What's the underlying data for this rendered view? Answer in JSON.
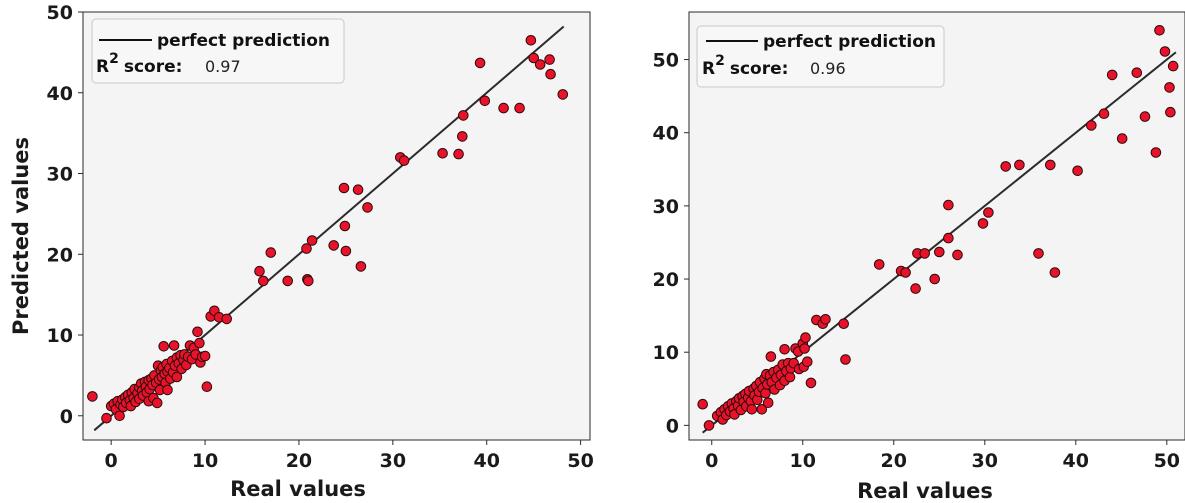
{
  "chart_data": [
    {
      "type": "scatter",
      "xlabel": "Real values",
      "ylabel": "Predicted values",
      "xlim": [
        -3,
        51
      ],
      "ylim": [
        -3,
        50
      ],
      "xticks": [
        0,
        10,
        20,
        30,
        40,
        50
      ],
      "yticks": [
        0,
        10,
        20,
        30,
        40,
        50
      ],
      "grid": false,
      "legend_position": "top-left",
      "legend": {
        "line_label": "perfect prediction",
        "score_label": "score",
        "score_sep": ":",
        "score_value": "0.97"
      },
      "line": {
        "x": [
          -1.8,
          48.2
        ],
        "y": [
          -1.8,
          48.2
        ]
      },
      "colors": {
        "marker": "#e8132b",
        "marker_edge": "#2a0a0a",
        "line": "#2b2b2b",
        "background": "#f4f4f4"
      },
      "points": [
        [
          -2,
          2.4
        ],
        [
          -0.5,
          -0.3
        ],
        [
          0,
          1.2
        ],
        [
          0.3,
          1.5
        ],
        [
          0.5,
          0.8
        ],
        [
          0.7,
          1.8
        ],
        [
          0.9,
          0
        ],
        [
          1,
          1.4
        ],
        [
          1.2,
          2
        ],
        [
          1.3,
          1.1
        ],
        [
          1.5,
          2.3
        ],
        [
          1.6,
          1.6
        ],
        [
          1.8,
          2.6
        ],
        [
          2,
          1.9
        ],
        [
          2.1,
          1.2
        ],
        [
          2.2,
          2.9
        ],
        [
          2.4,
          2.2
        ],
        [
          2.5,
          3.3
        ],
        [
          2.6,
          1.7
        ],
        [
          2.8,
          2.8
        ],
        [
          3,
          3.5
        ],
        [
          3,
          2.1
        ],
        [
          3.2,
          4
        ],
        [
          3.3,
          3.1
        ],
        [
          3.4,
          2.5
        ],
        [
          3.6,
          4.2
        ],
        [
          3.7,
          3.6
        ],
        [
          3.8,
          2.9
        ],
        [
          4,
          4.4
        ],
        [
          4,
          1.8
        ],
        [
          4.1,
          3.3
        ],
        [
          4.3,
          4.6
        ],
        [
          4.4,
          3.8
        ],
        [
          4.5,
          2.2
        ],
        [
          4.6,
          5
        ],
        [
          4.8,
          4.1
        ],
        [
          4.9,
          1.6
        ],
        [
          5,
          6.2
        ],
        [
          5.1,
          4.5
        ],
        [
          5.2,
          3.2
        ],
        [
          5.3,
          5.6
        ],
        [
          5.4,
          4.8
        ],
        [
          5.5,
          6
        ],
        [
          5.6,
          8.6
        ],
        [
          5.7,
          5.2
        ],
        [
          5.8,
          4.1
        ],
        [
          5.9,
          6.4
        ],
        [
          6,
          5.5
        ],
        [
          6,
          3.2
        ],
        [
          6.2,
          5.9
        ],
        [
          6.3,
          4.6
        ],
        [
          6.5,
          6.8
        ],
        [
          6.6,
          5.4
        ],
        [
          6.7,
          8.7
        ],
        [
          6.8,
          6.2
        ],
        [
          7,
          7.2
        ],
        [
          7,
          4.8
        ],
        [
          7.2,
          6.5
        ],
        [
          7.4,
          7.5
        ],
        [
          7.5,
          5.8
        ],
        [
          7.7,
          6.9
        ],
        [
          7.8,
          7.6
        ],
        [
          8,
          6.3
        ],
        [
          8.2,
          7.3
        ],
        [
          8.4,
          8.7
        ],
        [
          8.6,
          7
        ],
        [
          8.8,
          8.4
        ],
        [
          9,
          7.6
        ],
        [
          9.2,
          10.4
        ],
        [
          9.4,
          9
        ],
        [
          9.5,
          6.6
        ],
        [
          9.7,
          7.3
        ],
        [
          10,
          7.4
        ],
        [
          10.2,
          3.6
        ],
        [
          10.6,
          12.3
        ],
        [
          11,
          13
        ],
        [
          11.5,
          12.2
        ],
        [
          12.3,
          12
        ],
        [
          15.8,
          17.9
        ],
        [
          16.2,
          16.7
        ],
        [
          17,
          20.2
        ],
        [
          18.8,
          16.7
        ],
        [
          20.8,
          20.7
        ],
        [
          20.9,
          16.9
        ],
        [
          21,
          16.7
        ],
        [
          21.4,
          21.7
        ],
        [
          23.7,
          21.1
        ],
        [
          24.8,
          28.2
        ],
        [
          24.9,
          23.5
        ],
        [
          25,
          20.4
        ],
        [
          26.3,
          28
        ],
        [
          26.6,
          18.5
        ],
        [
          27.3,
          25.8
        ],
        [
          30.8,
          32
        ],
        [
          31.2,
          31.6
        ],
        [
          35.3,
          32.5
        ],
        [
          37,
          32.4
        ],
        [
          37.4,
          34.6
        ],
        [
          37.5,
          37.2
        ],
        [
          39.3,
          43.7
        ],
        [
          39.8,
          39
        ],
        [
          41.8,
          38.1
        ],
        [
          43.5,
          38.1
        ],
        [
          44.7,
          46.5
        ],
        [
          45,
          44.3
        ],
        [
          45.7,
          43.5
        ],
        [
          46.7,
          44.1
        ],
        [
          46.8,
          42.3
        ],
        [
          48.1,
          39.8
        ]
      ]
    },
    {
      "type": "scatter",
      "xlabel": "Real values",
      "ylabel": "",
      "xlim": [
        -2.5,
        52
      ],
      "ylim": [
        -2,
        56.5
      ],
      "xticks": [
        0,
        10,
        20,
        30,
        40,
        50
      ],
      "yticks": [
        0,
        10,
        20,
        30,
        40,
        50
      ],
      "grid": false,
      "legend_position": "top-left",
      "legend": {
        "line_label": "perfect prediction",
        "score_label": "score",
        "score_sep": ":",
        "score_value": "0.96"
      },
      "line": {
        "x": [
          -1,
          51
        ],
        "y": [
          -1,
          51
        ]
      },
      "colors": {
        "marker": "#e8132b",
        "marker_edge": "#2a0a0a",
        "line": "#2b2b2b",
        "background": "#f4f4f4"
      },
      "points": [
        [
          -1,
          2.9
        ],
        [
          -0.3,
          0
        ],
        [
          0.6,
          1.3
        ],
        [
          1,
          1.8
        ],
        [
          1.2,
          0.8
        ],
        [
          1.4,
          2.2
        ],
        [
          1.6,
          1.4
        ],
        [
          1.8,
          2.6
        ],
        [
          2,
          1.9
        ],
        [
          2.2,
          3
        ],
        [
          2.4,
          2.3
        ],
        [
          2.5,
          1.5
        ],
        [
          2.7,
          3.3
        ],
        [
          2.9,
          2.7
        ],
        [
          3,
          3.7
        ],
        [
          3.2,
          2.1
        ],
        [
          3.4,
          4
        ],
        [
          3.5,
          3.2
        ],
        [
          3.7,
          4.3
        ],
        [
          3.8,
          2.6
        ],
        [
          4,
          3.8
        ],
        [
          4.1,
          4.7
        ],
        [
          4.3,
          3.3
        ],
        [
          4.4,
          2.2
        ],
        [
          4.6,
          5
        ],
        [
          4.7,
          4.1
        ],
        [
          4.9,
          5.4
        ],
        [
          5,
          3.5
        ],
        [
          5.2,
          4.6
        ],
        [
          5.3,
          5.9
        ],
        [
          5.5,
          2.2
        ],
        [
          5.6,
          5.1
        ],
        [
          5.8,
          6.4
        ],
        [
          5.9,
          4.4
        ],
        [
          6,
          7
        ],
        [
          6.1,
          5.6
        ],
        [
          6.2,
          3.1
        ],
        [
          6.4,
          6.8
        ],
        [
          6.5,
          9.4
        ],
        [
          6.6,
          5.9
        ],
        [
          6.8,
          7.3
        ],
        [
          6.9,
          4.9
        ],
        [
          7.1,
          6.5
        ],
        [
          7.3,
          7.6
        ],
        [
          7.5,
          5.5
        ],
        [
          7.6,
          6.9
        ],
        [
          7.8,
          8.3
        ],
        [
          8,
          10.4
        ],
        [
          8,
          6.1
        ],
        [
          8.2,
          7.4
        ],
        [
          8.4,
          8.5
        ],
        [
          8.6,
          6.6
        ],
        [
          8.7,
          7.8
        ],
        [
          9,
          8.5
        ],
        [
          9.2,
          10.5
        ],
        [
          9.5,
          10.1
        ],
        [
          9.6,
          7.7
        ],
        [
          10,
          11.2
        ],
        [
          10.1,
          8
        ],
        [
          10.2,
          10.5
        ],
        [
          10.3,
          12
        ],
        [
          10.5,
          8.7
        ],
        [
          10.9,
          5.8
        ],
        [
          11.5,
          14.4
        ],
        [
          12.2,
          13.9
        ],
        [
          12.5,
          14.5
        ],
        [
          14.5,
          13.9
        ],
        [
          14.7,
          9
        ],
        [
          18.4,
          22
        ],
        [
          20.8,
          21.1
        ],
        [
          21.3,
          20.9
        ],
        [
          22.4,
          18.7
        ],
        [
          22.6,
          23.5
        ],
        [
          23.4,
          23.5
        ],
        [
          24.5,
          20
        ],
        [
          25,
          23.7
        ],
        [
          26,
          25.6
        ],
        [
          26,
          30.1
        ],
        [
          27,
          23.3
        ],
        [
          29.8,
          27.6
        ],
        [
          30.4,
          29.1
        ],
        [
          32.3,
          35.4
        ],
        [
          33.8,
          35.6
        ],
        [
          35.9,
          23.5
        ],
        [
          37.2,
          35.6
        ],
        [
          37.7,
          20.9
        ],
        [
          40.2,
          34.8
        ],
        [
          41.7,
          41
        ],
        [
          43.1,
          42.6
        ],
        [
          44,
          47.9
        ],
        [
          45.1,
          39.2
        ],
        [
          46.7,
          48.2
        ],
        [
          47.6,
          42.2
        ],
        [
          48.8,
          37.3
        ],
        [
          49.2,
          54
        ],
        [
          49.8,
          51.1
        ],
        [
          50.3,
          46.2
        ],
        [
          50.4,
          42.8
        ],
        [
          50.7,
          49.1
        ]
      ]
    }
  ]
}
